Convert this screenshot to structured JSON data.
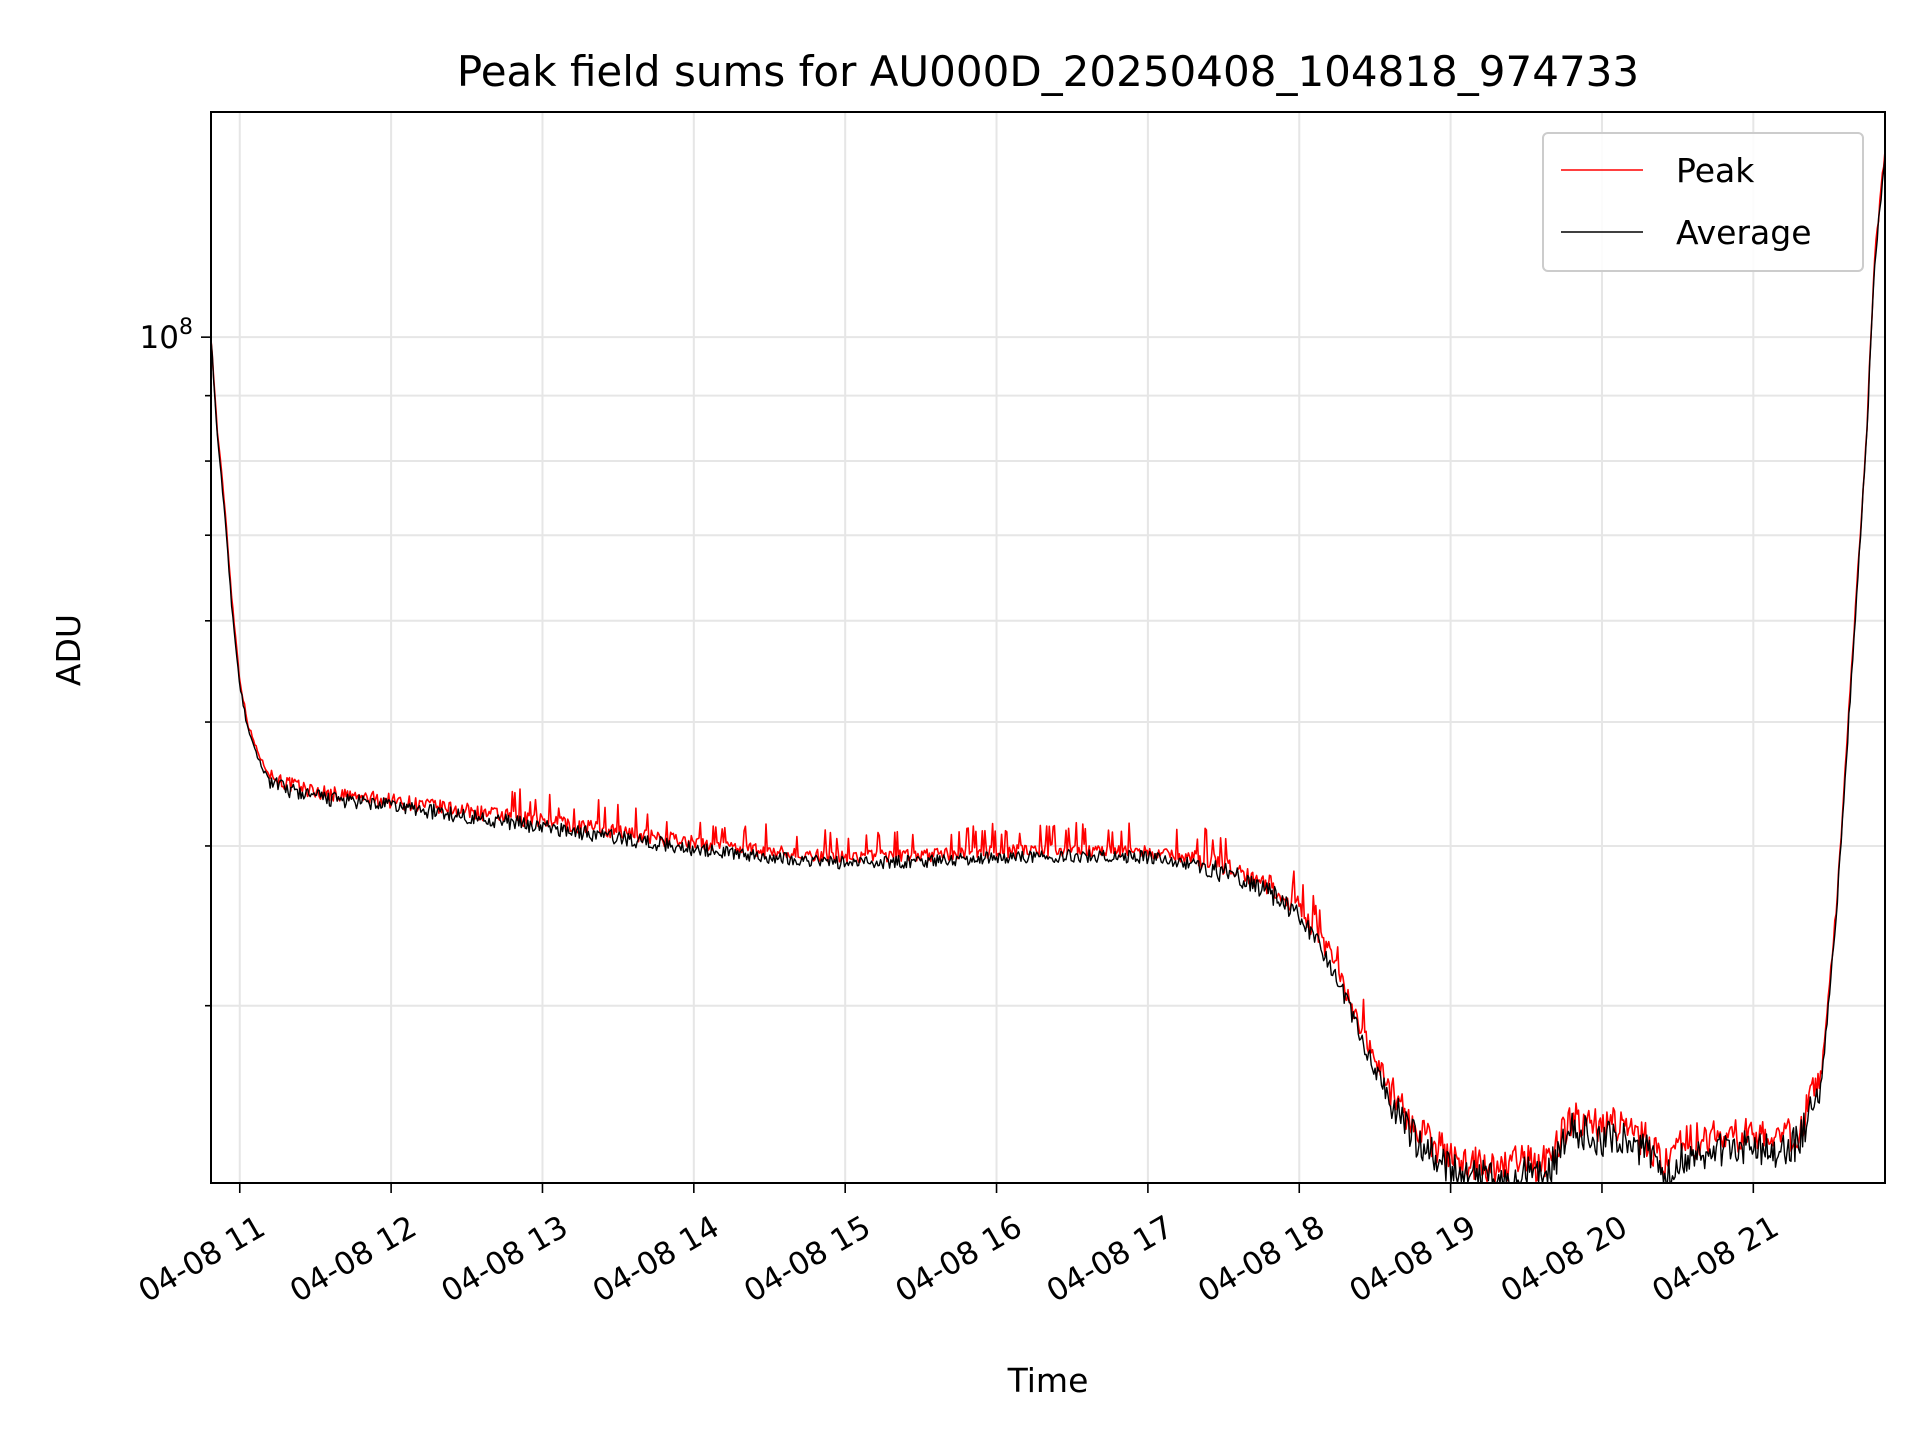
{
  "chart_data": {
    "type": "line",
    "title": "Peak field sums for AU000D_20250408_104818_974733",
    "xlabel": "Time",
    "ylabel": "ADU",
    "x_type": "time",
    "x_ticks": [
      "04-08 11",
      "04-08 12",
      "04-08 13",
      "04-08 14",
      "04-08 15",
      "04-08 16",
      "04-08 17",
      "04-08 18",
      "04-08 19",
      "04-08 20",
      "04-08 21"
    ],
    "x_tick_hours": [
      11,
      12,
      13,
      14,
      15,
      16,
      17,
      18,
      19,
      20,
      21
    ],
    "xlim_hours": [
      10.81,
      21.87
    ],
    "y_scale": "log",
    "ylim": [
      21800000,
      150000000
    ],
    "y_major_ticks": [
      100000000
    ],
    "y_major_tick_labels": [
      "10^8"
    ],
    "y_minor_ticks": [
      30000000,
      40000000,
      50000000,
      60000000,
      70000000,
      80000000,
      90000000
    ],
    "grid": true,
    "legend_position": "upper right",
    "series": [
      {
        "name": "Peak",
        "color": "#ff0000",
        "x_hours": [
          10.81,
          10.85,
          10.9,
          10.95,
          11.0,
          11.05,
          11.1,
          11.15,
          11.2,
          11.3,
          11.5,
          11.75,
          12.0,
          12.5,
          13.0,
          13.5,
          14.0,
          14.5,
          15.0,
          15.5,
          16.0,
          16.5,
          17.0,
          17.3,
          17.6,
          17.8,
          18.0,
          18.2,
          18.4,
          18.6,
          18.75,
          18.9,
          19.1,
          19.3,
          19.5,
          19.6,
          19.7,
          19.8,
          19.9,
          20.0,
          20.1,
          20.2,
          20.3,
          20.4,
          20.45,
          20.5,
          20.6,
          20.8,
          21.0,
          21.2,
          21.3,
          21.45,
          21.55,
          21.65,
          21.75,
          21.8,
          21.87
        ],
        "values": [
          100000000,
          85000000,
          74000000,
          62000000,
          54000000,
          50000000,
          48000000,
          46500000,
          45500000,
          44800000,
          44100000,
          43700000,
          43400000,
          42600000,
          41800000,
          41000000,
          40200000,
          39600000,
          39200000,
          39300000,
          39600000,
          39700000,
          39600000,
          39100000,
          38300000,
          37300000,
          35800000,
          33000000,
          29000000,
          25800000,
          24200000,
          23300000,
          22600000,
          22400000,
          22700000,
          22500000,
          23200000,
          24600000,
          24300000,
          24000000,
          24300000,
          23800000,
          23600000,
          22600000,
          22500000,
          23300000,
          23500000,
          23700000,
          23800000,
          23600000,
          24000000,
          26500000,
          36000000,
          55000000,
          85000000,
          115000000,
          140000000
        ]
      },
      {
        "name": "Average",
        "color": "#000000",
        "x_hours": [
          10.81,
          10.85,
          10.9,
          10.95,
          11.0,
          11.05,
          11.1,
          11.15,
          11.2,
          11.3,
          11.5,
          11.75,
          12.0,
          12.5,
          13.0,
          13.5,
          14.0,
          14.5,
          15.0,
          15.5,
          16.0,
          16.5,
          17.0,
          17.3,
          17.6,
          17.8,
          18.0,
          18.2,
          18.4,
          18.6,
          18.75,
          18.9,
          19.1,
          19.3,
          19.5,
          19.6,
          19.7,
          19.8,
          19.9,
          20.0,
          20.1,
          20.2,
          20.3,
          20.4,
          20.45,
          20.5,
          20.6,
          20.8,
          21.0,
          21.2,
          21.3,
          21.45,
          21.55,
          21.65,
          21.75,
          21.8,
          21.87
        ],
        "values": [
          100000000,
          84000000,
          73000000,
          61000000,
          53500000,
          49500000,
          47500000,
          46000000,
          45000000,
          44300000,
          43700000,
          43300000,
          43000000,
          42200000,
          41400000,
          40600000,
          39800000,
          39200000,
          38800000,
          38900000,
          39200000,
          39300000,
          39200000,
          38700000,
          37800000,
          36800000,
          35300000,
          32500000,
          28500000,
          25300000,
          23700000,
          22800000,
          22100000,
          21900000,
          22200000,
          22000000,
          22700000,
          24100000,
          23800000,
          23500000,
          23800000,
          23300000,
          23100000,
          22100000,
          22000000,
          22800000,
          23000000,
          23200000,
          23300000,
          23100000,
          23500000,
          26000000,
          35500000,
          54500000,
          84000000,
          114000000,
          138000000
        ]
      }
    ]
  }
}
